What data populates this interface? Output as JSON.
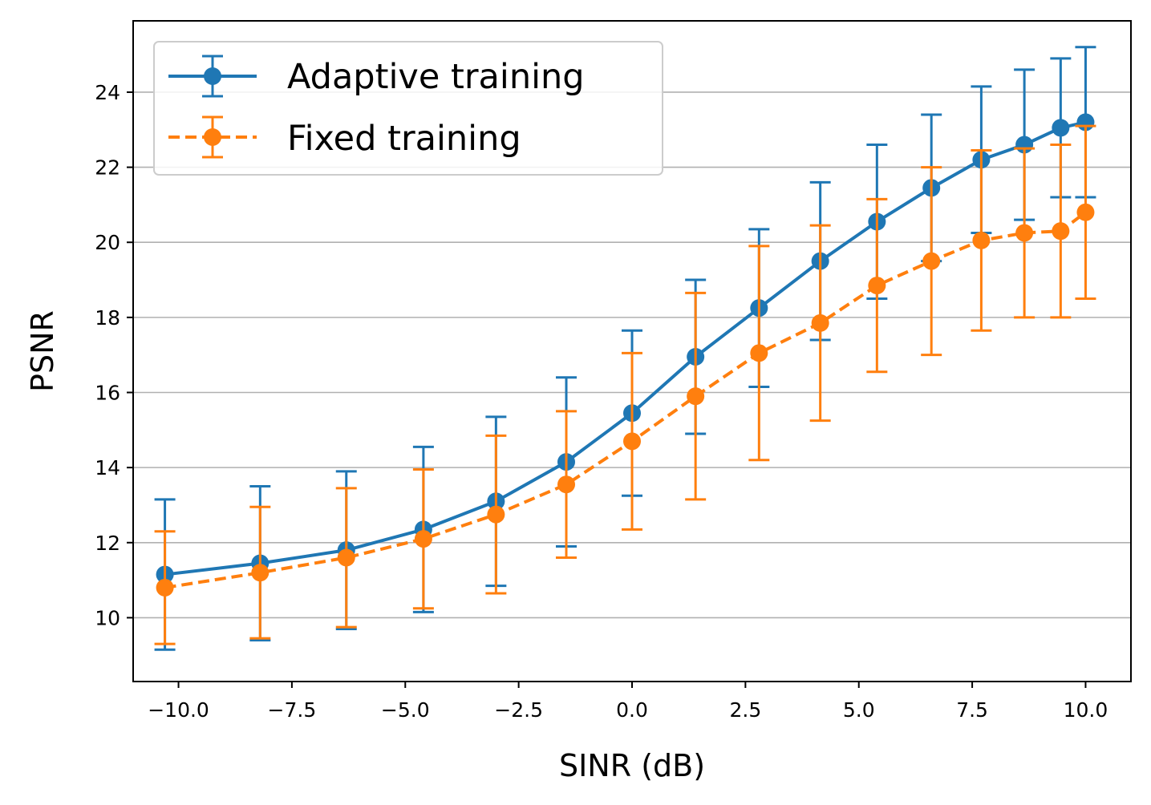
{
  "chart_data": {
    "type": "line",
    "xlabel": "SINR (dB)",
    "ylabel": "PSNR",
    "xlim": [
      -11.0,
      11.0
    ],
    "ylim": [
      8.3,
      25.9
    ],
    "xticks": [
      -10.0,
      -7.5,
      -5.0,
      -2.5,
      0.0,
      2.5,
      5.0,
      7.5,
      10.0
    ],
    "xtick_labels": [
      "−10.0",
      "−7.5",
      "−5.0",
      "−2.5",
      "0.0",
      "2.5",
      "5.0",
      "7.5",
      "10.0"
    ],
    "yticks": [
      10,
      12,
      14,
      16,
      18,
      20,
      22,
      24
    ],
    "ytick_labels": [
      "10",
      "12",
      "14",
      "16",
      "18",
      "20",
      "22",
      "24"
    ],
    "grid": "horizontal",
    "legend_position": "top-left",
    "x": [
      -10.3,
      -8.2,
      -6.3,
      -4.6,
      -3.0,
      -1.45,
      0.0,
      1.4,
      2.8,
      4.15,
      5.4,
      6.6,
      7.7,
      8.65,
      9.45,
      10.0
    ],
    "series": [
      {
        "name": "Adaptive training",
        "color": "#1f77b4",
        "line_style": "solid",
        "marker": "circle",
        "values": [
          11.15,
          11.45,
          11.8,
          12.35,
          13.1,
          14.15,
          15.45,
          16.95,
          18.25,
          19.5,
          20.55,
          21.45,
          22.2,
          22.6,
          23.05,
          23.2
        ],
        "error": [
          2.0,
          2.05,
          2.1,
          2.2,
          2.25,
          2.25,
          2.2,
          2.05,
          2.1,
          2.1,
          2.05,
          1.95,
          1.95,
          2.0,
          1.85,
          2.0
        ]
      },
      {
        "name": "Fixed training",
        "color": "#ff7f0e",
        "line_style": "dashed",
        "marker": "circle",
        "values": [
          10.8,
          11.2,
          11.6,
          12.1,
          12.75,
          13.55,
          14.7,
          15.9,
          17.05,
          17.85,
          18.85,
          19.5,
          20.05,
          20.25,
          20.3,
          20.8
        ],
        "error": [
          1.5,
          1.75,
          1.85,
          1.85,
          2.1,
          1.95,
          2.35,
          2.75,
          2.85,
          2.6,
          2.3,
          2.5,
          2.4,
          2.25,
          2.3,
          2.3
        ]
      }
    ]
  }
}
